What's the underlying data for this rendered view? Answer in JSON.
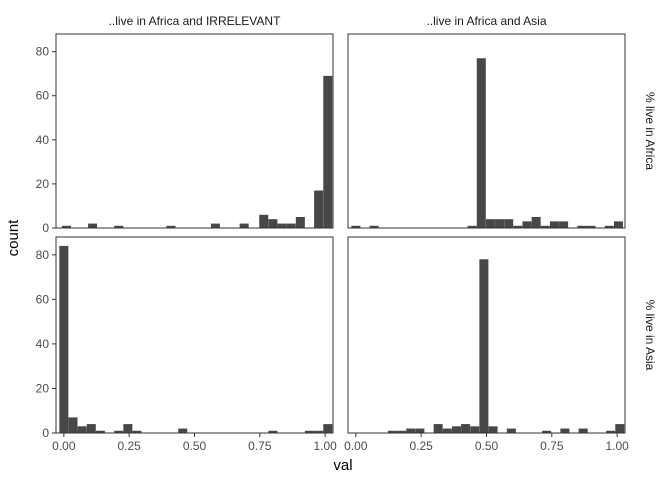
{
  "chart_data": {
    "type": "bar",
    "subtype": "faceted-histogram",
    "xlabel": "val",
    "ylabel": "count",
    "xlim": [
      -0.03,
      1.03
    ],
    "ylim": [
      0,
      88
    ],
    "x_ticks": [
      0.0,
      0.25,
      0.5,
      0.75,
      1.0
    ],
    "x_tick_labels": [
      "0.00",
      "0.25",
      "0.50",
      "0.75",
      "1.00"
    ],
    "y_ticks": [
      0,
      20,
      40,
      60,
      80
    ],
    "y_tick_labels": [
      "0",
      "20",
      "40",
      "60",
      "80"
    ],
    "bin_width": 0.0345,
    "bar_color": "#474747",
    "col_facets": [
      "..live in Africa and IRRELEVANT",
      "..live in Africa and Asia"
    ],
    "row_facets": [
      "% live in Africa",
      "% live in Asia"
    ],
    "grid": false,
    "panels": [
      {
        "row": 0,
        "col": 0,
        "bins": [
          {
            "x": 0.01,
            "count": 1
          },
          {
            "x": 0.11,
            "count": 2
          },
          {
            "x": 0.21,
            "count": 1
          },
          {
            "x": 0.41,
            "count": 1
          },
          {
            "x": 0.58,
            "count": 2
          },
          {
            "x": 0.69,
            "count": 2
          },
          {
            "x": 0.765,
            "count": 6
          },
          {
            "x": 0.8,
            "count": 4
          },
          {
            "x": 0.835,
            "count": 2
          },
          {
            "x": 0.87,
            "count": 2
          },
          {
            "x": 0.905,
            "count": 5
          },
          {
            "x": 0.975,
            "count": 17
          },
          {
            "x": 1.01,
            "count": 69
          }
        ]
      },
      {
        "row": 0,
        "col": 1,
        "bins": [
          {
            "x": 0.0,
            "count": 1
          },
          {
            "x": 0.07,
            "count": 1
          },
          {
            "x": 0.445,
            "count": 1
          },
          {
            "x": 0.48,
            "count": 77
          },
          {
            "x": 0.515,
            "count": 4
          },
          {
            "x": 0.55,
            "count": 4
          },
          {
            "x": 0.585,
            "count": 4
          },
          {
            "x": 0.62,
            "count": 1
          },
          {
            "x": 0.655,
            "count": 3
          },
          {
            "x": 0.69,
            "count": 5
          },
          {
            "x": 0.725,
            "count": 1
          },
          {
            "x": 0.76,
            "count": 3
          },
          {
            "x": 0.795,
            "count": 3
          },
          {
            "x": 0.865,
            "count": 1
          },
          {
            "x": 0.9,
            "count": 1
          },
          {
            "x": 0.97,
            "count": 1
          },
          {
            "x": 1.005,
            "count": 3
          }
        ]
      },
      {
        "row": 1,
        "col": 0,
        "bins": [
          {
            "x": 0.0,
            "count": 84
          },
          {
            "x": 0.035,
            "count": 7
          },
          {
            "x": 0.07,
            "count": 3
          },
          {
            "x": 0.105,
            "count": 4
          },
          {
            "x": 0.14,
            "count": 1
          },
          {
            "x": 0.21,
            "count": 1
          },
          {
            "x": 0.245,
            "count": 4
          },
          {
            "x": 0.28,
            "count": 1
          },
          {
            "x": 0.455,
            "count": 2
          },
          {
            "x": 0.8,
            "count": 1
          },
          {
            "x": 0.94,
            "count": 1
          },
          {
            "x": 0.975,
            "count": 1
          },
          {
            "x": 1.01,
            "count": 4
          }
        ]
      },
      {
        "row": 1,
        "col": 1,
        "bins": [
          {
            "x": 0.14,
            "count": 1
          },
          {
            "x": 0.175,
            "count": 1
          },
          {
            "x": 0.21,
            "count": 2
          },
          {
            "x": 0.245,
            "count": 2
          },
          {
            "x": 0.315,
            "count": 4
          },
          {
            "x": 0.35,
            "count": 2
          },
          {
            "x": 0.385,
            "count": 3
          },
          {
            "x": 0.42,
            "count": 4
          },
          {
            "x": 0.455,
            "count": 3
          },
          {
            "x": 0.49,
            "count": 78
          },
          {
            "x": 0.525,
            "count": 3
          },
          {
            "x": 0.595,
            "count": 2
          },
          {
            "x": 0.73,
            "count": 1
          },
          {
            "x": 0.8,
            "count": 2
          },
          {
            "x": 0.87,
            "count": 2
          },
          {
            "x": 0.975,
            "count": 1
          },
          {
            "x": 1.01,
            "count": 4
          }
        ]
      }
    ]
  }
}
